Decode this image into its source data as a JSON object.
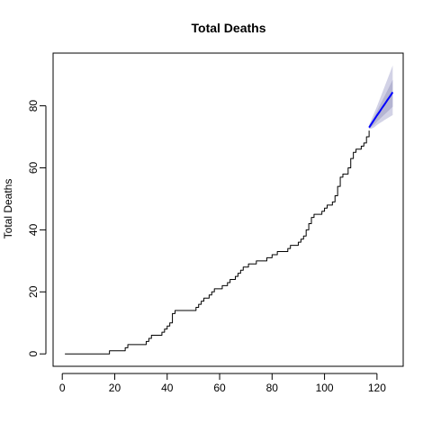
{
  "chart_data": {
    "type": "line",
    "title": "Total Deaths",
    "xlabel": "",
    "ylabel": "Total Deaths",
    "xlim": [
      -3.5,
      130
    ],
    "ylim": [
      -4,
      97
    ],
    "x_ticks": [
      0,
      20,
      40,
      60,
      80,
      100,
      120
    ],
    "y_ticks": [
      0,
      20,
      40,
      60,
      80
    ],
    "grid": false,
    "series": [
      {
        "role": "observed",
        "color": "#000000",
        "x": [
          1,
          17,
          18,
          19,
          20,
          21,
          22,
          23,
          24,
          25,
          26,
          27,
          28,
          29,
          30,
          31,
          32,
          33,
          34,
          35,
          36,
          37,
          38,
          39,
          40,
          41,
          42,
          43,
          44,
          45,
          46,
          47,
          48,
          49,
          50,
          51,
          52,
          53,
          54,
          55,
          56,
          57,
          58,
          59,
          60,
          61,
          62,
          63,
          64,
          65,
          66,
          67,
          68,
          69,
          70,
          71,
          72,
          73,
          74,
          75,
          76,
          77,
          78,
          79,
          80,
          81,
          82,
          83,
          84,
          85,
          86,
          87,
          88,
          89,
          90,
          91,
          92,
          93,
          94,
          95,
          96,
          97,
          98,
          99,
          100,
          101,
          102,
          103,
          104,
          105,
          106,
          107,
          108,
          109,
          110,
          111,
          112,
          113,
          114,
          115,
          116,
          117
        ],
        "y": [
          0,
          0,
          1,
          1,
          1,
          1,
          1,
          1,
          2,
          3,
          3,
          3,
          3,
          3,
          3,
          3,
          4,
          5,
          6,
          6,
          6,
          6,
          7,
          8,
          9,
          10,
          13,
          14,
          14,
          14,
          14,
          14,
          14,
          14,
          14,
          15,
          16,
          17,
          18,
          18,
          19,
          20,
          21,
          21,
          21,
          22,
          22,
          23,
          24,
          24,
          25,
          26,
          27,
          28,
          28,
          29,
          29,
          29,
          30,
          30,
          30,
          30,
          31,
          31,
          32,
          32,
          33,
          33,
          33,
          33,
          34,
          35,
          35,
          35,
          36,
          37,
          38,
          40,
          42,
          44,
          45,
          45,
          45,
          46,
          47,
          48,
          48,
          49,
          51,
          54,
          57,
          58,
          58,
          60,
          63,
          65,
          66,
          66,
          67,
          68,
          70,
          72
        ]
      },
      {
        "role": "forecast",
        "color": "#0000ff",
        "x": [
          117,
          118,
          119,
          120,
          121,
          122,
          123,
          124,
          125,
          126
        ],
        "y": [
          73.0,
          74.3,
          75.6,
          76.9,
          78.1,
          79.4,
          80.6,
          81.9,
          83.1,
          84.4
        ]
      }
    ],
    "bands": [
      {
        "level": "outer",
        "color": "#d2d2e6",
        "x": [
          117,
          118,
          119,
          120,
          121,
          122,
          123,
          124,
          125,
          126
        ],
        "lower": [
          72.5,
          72.7,
          73.1,
          73.8,
          74.4,
          74.9,
          75.5,
          76.0,
          76.5,
          77.0
        ],
        "upper": [
          73.8,
          75.8,
          77.8,
          79.8,
          82.0,
          84.2,
          86.4,
          88.6,
          90.8,
          93.0
        ]
      },
      {
        "level": "inner",
        "color": "#b4b4d2",
        "x": [
          117,
          118,
          119,
          120,
          121,
          122,
          123,
          124,
          125,
          126
        ],
        "lower": [
          72.8,
          73.3,
          74.0,
          74.9,
          75.7,
          76.5,
          77.3,
          78.1,
          78.9,
          79.7
        ],
        "upper": [
          73.4,
          75.0,
          76.6,
          78.2,
          80.0,
          81.6,
          83.3,
          85.0,
          86.7,
          88.4
        ]
      }
    ]
  }
}
